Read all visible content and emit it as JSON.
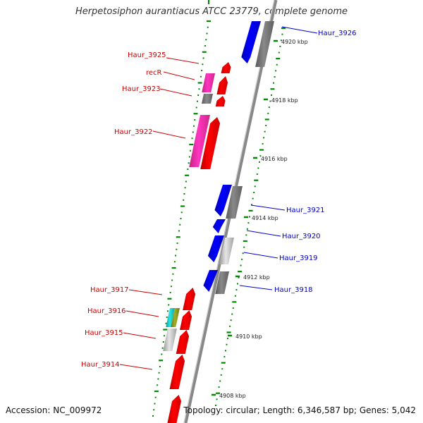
{
  "title": "Herpetosiphon aurantiacus ATCC 23779, complete genome",
  "footer": {
    "accession": "Accession: NC_009972",
    "stats": "Topology: circular; Length: 6,346,587 bp; Genes: 5,042"
  },
  "colors": {
    "forward_gene": "#ff0000",
    "reverse_gene": "#0000ee",
    "pink_gene": "#ff2fa8",
    "gray_gene": "#777777",
    "light_gray_gene": "#c8c8c8",
    "teal_gene": "#22c8c8",
    "olive_gene": "#8a9a20",
    "tick_green": "#008800",
    "backbone": "#888888",
    "forward_label": "#cc0000",
    "reverse_label": "#0000cc"
  },
  "scale_ticks": [
    "4920 kbp",
    "4918 kbp",
    "4916 kbp",
    "4914 kbp",
    "4912 kbp",
    "4910 kbp",
    "4908 kbp"
  ],
  "genes": {
    "forward": [
      "Haur_3925",
      "recR",
      "Haur_3923",
      "Haur_3922",
      "Haur_3917",
      "Haur_3916",
      "Haur_3915",
      "Haur_3914"
    ],
    "reverse": [
      "Haur_3926",
      "Haur_3921",
      "Haur_3920",
      "Haur_3919",
      "Haur_3918"
    ]
  }
}
